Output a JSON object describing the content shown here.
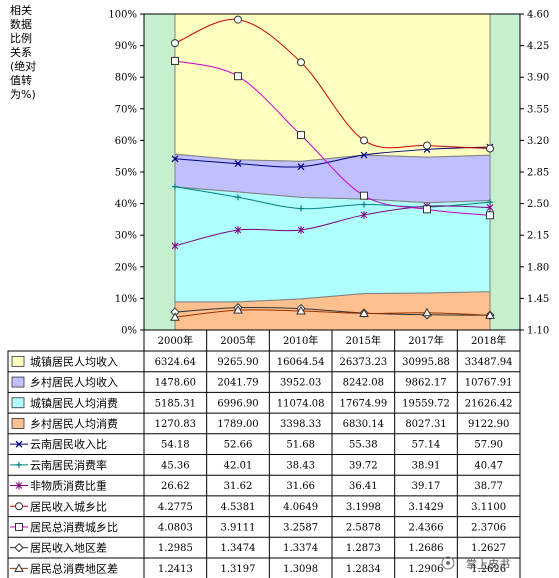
{
  "chart_data": {
    "type": "line",
    "ylabel": "相关数据比例关系(绝对值转为%)",
    "ylabel_lines": [
      "相关",
      "数据",
      "比例",
      "关系",
      "(绝对",
      "值转",
      "为%)"
    ],
    "categories": [
      "2000年",
      "2005年",
      "2010年",
      "2015年",
      "2017年",
      "2018年"
    ],
    "y_left": {
      "min": 0,
      "max": 100,
      "ticks": [
        "0%",
        "10%",
        "20%",
        "30%",
        "40%",
        "50%",
        "60%",
        "70%",
        "80%",
        "90%",
        "100%"
      ]
    },
    "y_right": {
      "min": 1.1,
      "max": 4.6,
      "ticks": [
        "1.10",
        "1.45",
        "1.80",
        "2.15",
        "2.50",
        "2.85",
        "3.20",
        "3.55",
        "3.90",
        "4.25",
        "4.60"
      ]
    },
    "grid": false,
    "colors": {
      "plot_bg": "#ffffff",
      "outer_bg": "#c6efce",
      "urban_income": "#ffffc0",
      "rural_income": "#c0c0ff",
      "urban_consume": "#b0ffff",
      "rural_consume": "#ffc090"
    },
    "series": [
      {
        "name": "城镇居民人均收入",
        "style": "area",
        "color": "#ffffc0",
        "values": [
          6324.64,
          9265.9,
          16064.54,
          26373.23,
          30995.88,
          33487.94
        ],
        "labels": [
          "6324.64",
          "9265.90",
          "16064.54",
          "26373.23",
          "30995.88",
          "33487.94"
        ]
      },
      {
        "name": "乡村居民人均收入",
        "style": "area",
        "color": "#c0c0ff",
        "values": [
          1478.6,
          2041.79,
          3952.03,
          8242.08,
          9862.17,
          10767.91
        ],
        "labels": [
          "1478.60",
          "2041.79",
          "3952.03",
          "8242.08",
          "9862.17",
          "10767.91"
        ]
      },
      {
        "name": "城镇居民人均消费",
        "style": "area",
        "color": "#b0ffff",
        "values": [
          5185.31,
          6996.9,
          11074.08,
          17674.99,
          19559.72,
          21626.42
        ],
        "labels": [
          "5185.31",
          "6996.90",
          "11074.08",
          "17674.99",
          "19559.72",
          "21626.42"
        ]
      },
      {
        "name": "乡村居民人均消费",
        "style": "area",
        "color": "#ffc090",
        "values": [
          1270.83,
          1789.0,
          3398.33,
          6830.14,
          8027.31,
          9122.9
        ],
        "labels": [
          "1270.83",
          "1789.00",
          "3398.33",
          "6830.14",
          "8027.31",
          "9122.90"
        ]
      },
      {
        "name": "云南居民收入比",
        "style": "line",
        "axis": "left",
        "marker": "x",
        "color": "#000080",
        "values": [
          54.18,
          52.66,
          51.68,
          55.38,
          57.14,
          57.9
        ],
        "labels": [
          "54.18",
          "52.66",
          "51.68",
          "55.38",
          "57.14",
          "57.90"
        ]
      },
      {
        "name": "云南居民消费率",
        "style": "line",
        "axis": "left",
        "marker": "plus",
        "color": "#008080",
        "values": [
          45.36,
          42.01,
          38.43,
          39.72,
          38.91,
          40.47
        ],
        "labels": [
          "45.36",
          "42.01",
          "38.43",
          "39.72",
          "38.91",
          "40.47"
        ]
      },
      {
        "name": "非物质消费比重",
        "style": "line",
        "axis": "left",
        "marker": "star",
        "color": "#800080",
        "values": [
          26.62,
          31.62,
          31.66,
          36.41,
          39.17,
          38.77
        ],
        "labels": [
          "26.62",
          "31.62",
          "31.66",
          "36.41",
          "39.17",
          "38.77"
        ]
      },
      {
        "name": "居民收入城乡比",
        "style": "line",
        "axis": "right",
        "marker": "circle",
        "color": "#cc0000",
        "values": [
          4.2775,
          4.5381,
          4.0649,
          3.1998,
          3.1429,
          3.11
        ],
        "labels": [
          "4.2775",
          "4.5381",
          "4.0649",
          "3.1998",
          "3.1429",
          "3.1100"
        ]
      },
      {
        "name": "居民总消费城乡比",
        "style": "line",
        "axis": "right",
        "marker": "square",
        "color": "#cc00cc",
        "values": [
          4.0803,
          3.9111,
          3.2587,
          2.5878,
          2.4366,
          2.3706
        ],
        "labels": [
          "4.0803",
          "3.9111",
          "3.2587",
          "2.5878",
          "2.4366",
          "2.3706"
        ]
      },
      {
        "name": "居民收入地区差",
        "style": "line",
        "axis": "right",
        "marker": "diamond",
        "color": "#333333",
        "values": [
          1.2985,
          1.3474,
          1.3374,
          1.2873,
          1.2686,
          1.2627
        ],
        "labels": [
          "1.2985",
          "1.3474",
          "1.3374",
          "1.2873",
          "1.2686",
          "1.2627"
        ]
      },
      {
        "name": "居民总消费地区差",
        "style": "line",
        "axis": "right",
        "marker": "triangle",
        "color": "#993300",
        "values": [
          1.2413,
          1.3197,
          1.3098,
          1.2834,
          1.2906,
          1.2626
        ],
        "labels": [
          "1.2413",
          "1.3197",
          "1.3098",
          "1.2834",
          "1.2906",
          "1.2626"
        ]
      }
    ]
  },
  "watermark": "掌上皮书"
}
